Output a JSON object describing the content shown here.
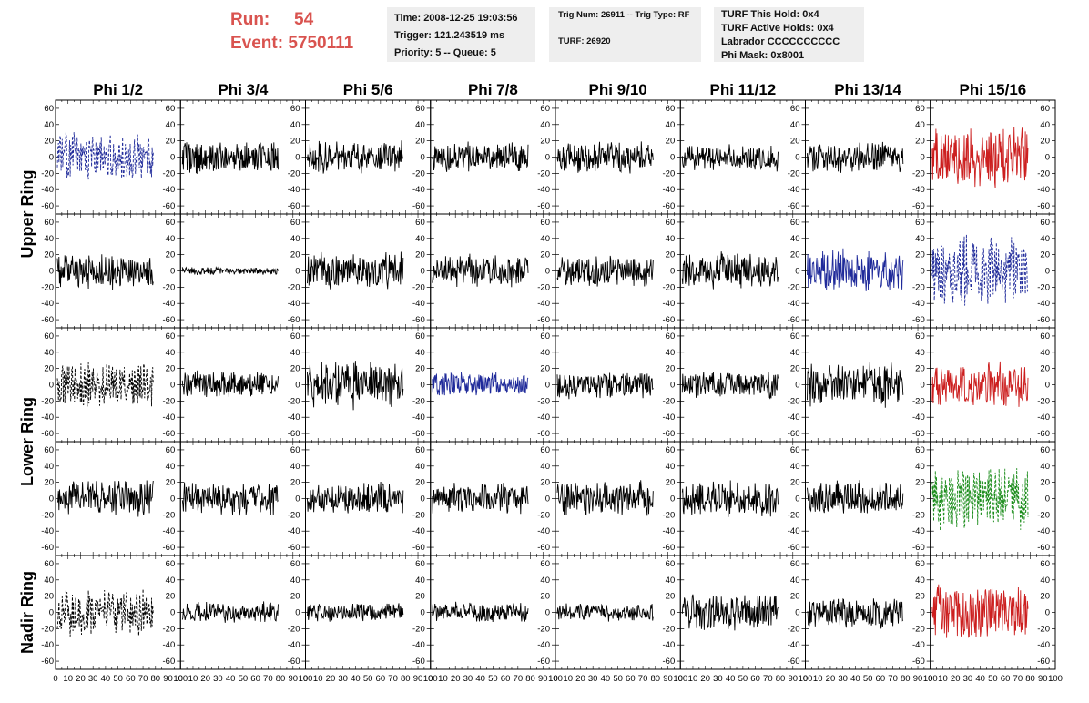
{
  "header": {
    "run_label": "Run:",
    "run_value": "54",
    "event_label": "Event:",
    "event_value": "5750111",
    "time": "Time: 2008-12-25 19:03:56",
    "trigger": "Trigger: 121.243519 ms",
    "priority": "Priority: 5 -- Queue: 5",
    "trig_num": "Trig Num: 26911 -- Trig Type: RF",
    "turf": "TURF: 26920",
    "turf_this_hold": "TURF This Hold: 0x4",
    "turf_active_holds": "TURF Active Holds: 0x4",
    "labrador": "Labrador CCCCCCCCCC",
    "phi_mask": "Phi Mask: 0x8001"
  },
  "colors": {
    "header_red": "#d9534f",
    "trace_black": "#000000",
    "trace_blue": "#1f2a9a",
    "trace_red": "#cc1f1f",
    "trace_green": "#1a8c1a",
    "info_box_bg": "#eeeeee"
  },
  "chart_data": {
    "type": "line",
    "columns": [
      "Phi 1/2",
      "Phi 3/4",
      "Phi 5/6",
      "Phi 7/8",
      "Phi 9/10",
      "Phi 11/12",
      "Phi 13/14",
      "Phi 15/16"
    ],
    "ring_labels": [
      {
        "text": "Upper Ring",
        "row_span": [
          0,
          1
        ]
      },
      {
        "text": "Lower Ring",
        "row_span": [
          2,
          3
        ]
      },
      {
        "text": "Nadir Ring",
        "row_span": [
          4,
          4
        ]
      }
    ],
    "ylim": [
      -70,
      70
    ],
    "yticks": [
      "-60",
      "-40",
      "-20",
      "0",
      "20",
      "40",
      "60"
    ],
    "xlim": [
      0,
      100
    ],
    "xticks": [
      "0",
      "10",
      "20",
      "30",
      "40",
      "50",
      "60",
      "70",
      "80",
      "90",
      "100"
    ],
    "panels": [
      [
        {
          "amp": 32,
          "color": "blue",
          "dash": true,
          "seed": 11
        },
        {
          "amp": 22,
          "color": "black",
          "dash": false,
          "seed": 12
        },
        {
          "amp": 22,
          "color": "black",
          "dash": false,
          "seed": 13
        },
        {
          "amp": 20,
          "color": "black",
          "dash": false,
          "seed": 14
        },
        {
          "amp": 22,
          "color": "black",
          "dash": false,
          "seed": 15
        },
        {
          "amp": 18,
          "color": "black",
          "dash": false,
          "seed": 16
        },
        {
          "amp": 22,
          "color": "black",
          "dash": false,
          "seed": 17
        },
        {
          "amp": 40,
          "color": "red",
          "dash": false,
          "seed": 18
        }
      ],
      [
        {
          "amp": 24,
          "color": "black",
          "dash": false,
          "seed": 21
        },
        {
          "amp": 5,
          "color": "black",
          "dash": false,
          "seed": 22
        },
        {
          "amp": 24,
          "color": "black",
          "dash": false,
          "seed": 23
        },
        {
          "amp": 22,
          "color": "black",
          "dash": false,
          "seed": 24
        },
        {
          "amp": 22,
          "color": "black",
          "dash": false,
          "seed": 25
        },
        {
          "amp": 24,
          "color": "black",
          "dash": false,
          "seed": 26
        },
        {
          "amp": 28,
          "color": "blue",
          "dash": false,
          "seed": 27
        },
        {
          "amp": 48,
          "color": "blue",
          "dash": true,
          "seed": 28
        }
      ],
      [
        {
          "amp": 30,
          "color": "black",
          "dash": true,
          "seed": 31
        },
        {
          "amp": 18,
          "color": "black",
          "dash": false,
          "seed": 32
        },
        {
          "amp": 32,
          "color": "black",
          "dash": false,
          "seed": 33
        },
        {
          "amp": 16,
          "color": "blue",
          "dash": false,
          "seed": 34
        },
        {
          "amp": 18,
          "color": "black",
          "dash": false,
          "seed": 35
        },
        {
          "amp": 18,
          "color": "black",
          "dash": false,
          "seed": 36
        },
        {
          "amp": 30,
          "color": "black",
          "dash": false,
          "seed": 37
        },
        {
          "amp": 30,
          "color": "red",
          "dash": false,
          "seed": 38
        }
      ],
      [
        {
          "amp": 24,
          "color": "black",
          "dash": false,
          "seed": 41
        },
        {
          "amp": 22,
          "color": "black",
          "dash": false,
          "seed": 42
        },
        {
          "amp": 22,
          "color": "black",
          "dash": false,
          "seed": 43
        },
        {
          "amp": 20,
          "color": "black",
          "dash": false,
          "seed": 44
        },
        {
          "amp": 24,
          "color": "black",
          "dash": false,
          "seed": 45
        },
        {
          "amp": 24,
          "color": "black",
          "dash": false,
          "seed": 46
        },
        {
          "amp": 24,
          "color": "black",
          "dash": false,
          "seed": 47
        },
        {
          "amp": 42,
          "color": "green",
          "dash": true,
          "seed": 48
        }
      ],
      [
        {
          "amp": 32,
          "color": "black",
          "dash": true,
          "seed": 51
        },
        {
          "amp": 14,
          "color": "black",
          "dash": false,
          "seed": 52
        },
        {
          "amp": 12,
          "color": "black",
          "dash": false,
          "seed": 53
        },
        {
          "amp": 14,
          "color": "black",
          "dash": false,
          "seed": 54
        },
        {
          "amp": 12,
          "color": "black",
          "dash": false,
          "seed": 55
        },
        {
          "amp": 24,
          "color": "black",
          "dash": false,
          "seed": 56
        },
        {
          "amp": 22,
          "color": "black",
          "dash": false,
          "seed": 57
        },
        {
          "amp": 36,
          "color": "red",
          "dash": false,
          "seed": 58
        }
      ]
    ]
  }
}
